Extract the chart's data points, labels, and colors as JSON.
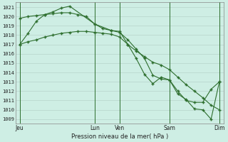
{
  "bg_color": "#ceeee4",
  "grid_color": "#b0ccc4",
  "line_color": "#2d6e2d",
  "xlabel": "Pression niveau de la mer( hPa )",
  "ylim": [
    1008.5,
    1021.5
  ],
  "yticks": [
    1009,
    1010,
    1011,
    1012,
    1013,
    1014,
    1015,
    1016,
    1017,
    1018,
    1019,
    1020,
    1021
  ],
  "day_labels": [
    "Jeu",
    "",
    "Lun",
    "Ven",
    "",
    "Sam",
    "",
    "Dim"
  ],
  "day_positions": [
    0,
    18,
    36,
    48,
    60,
    72,
    84,
    96
  ],
  "vline_positions": [
    0,
    36,
    48,
    72,
    96
  ],
  "line1_x": [
    0,
    4,
    8,
    12,
    16,
    20,
    24,
    28,
    32,
    36,
    40,
    44,
    48,
    52,
    56,
    60,
    64,
    68,
    72,
    76,
    80,
    84,
    88,
    92,
    96
  ],
  "line1_y": [
    1017.0,
    1017.3,
    1017.5,
    1017.8,
    1018.0,
    1018.2,
    1018.3,
    1018.4,
    1018.4,
    1018.3,
    1018.2,
    1018.1,
    1017.8,
    1017.0,
    1016.3,
    1015.7,
    1015.1,
    1014.8,
    1014.3,
    1013.5,
    1012.7,
    1012.0,
    1011.3,
    1010.5,
    1010.0
  ],
  "line2_x": [
    0,
    4,
    8,
    12,
    16,
    20,
    24,
    28,
    32,
    36,
    40,
    44,
    48,
    52,
    56,
    60,
    64,
    68,
    72,
    76,
    80,
    84,
    88,
    92,
    96
  ],
  "line2_y": [
    1019.8,
    1020.0,
    1020.1,
    1020.2,
    1020.3,
    1020.4,
    1020.4,
    1020.2,
    1020.0,
    1019.2,
    1018.7,
    1018.5,
    1018.3,
    1017.5,
    1016.5,
    1015.5,
    1013.7,
    1013.3,
    1013.2,
    1011.7,
    1011.1,
    1010.1,
    1010.0,
    1009.0,
    1013.0
  ],
  "line3_x": [
    0,
    4,
    8,
    12,
    16,
    20,
    24,
    36,
    44,
    48,
    52,
    56,
    60,
    64,
    68,
    72,
    76,
    80,
    84,
    88,
    92,
    96
  ],
  "line3_y": [
    1017.0,
    1018.2,
    1019.5,
    1020.2,
    1020.5,
    1020.9,
    1021.1,
    1019.2,
    1018.5,
    1018.4,
    1017.0,
    1015.5,
    1013.8,
    1012.8,
    1013.5,
    1013.2,
    1012.0,
    1011.0,
    1010.8,
    1010.8,
    1012.2,
    1013.0
  ]
}
